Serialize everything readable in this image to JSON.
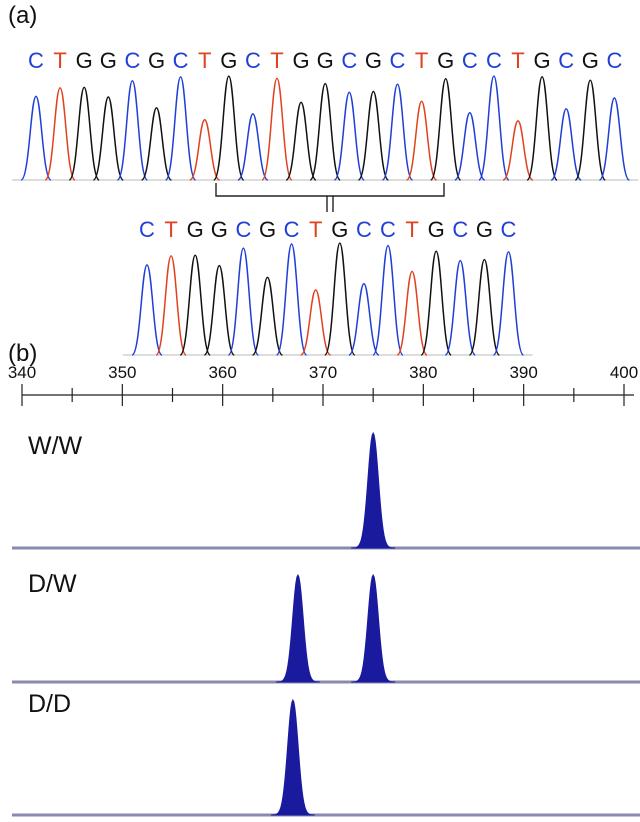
{
  "panel_a": {
    "label": "(a)",
    "top_sequence": "CTGGCGCTGCTGGCGCTGCCTGCGC",
    "bottom_sequence": "CTGGCGCTGCCTGCGC"
  },
  "panel_b": {
    "label": "(b)",
    "axis": {
      "min": 340,
      "max": 400,
      "ticks": [
        340,
        350,
        360,
        370,
        380,
        390,
        400
      ]
    },
    "traces": [
      {
        "name": "W/W",
        "peaks": [
          {
            "size": 375,
            "height": 1.0
          }
        ]
      },
      {
        "name": "D/W",
        "peaks": [
          {
            "size": 367.5,
            "height": 0.93
          },
          {
            "size": 375,
            "height": 0.93
          }
        ]
      },
      {
        "name": "D/D",
        "peaks": [
          {
            "size": 367,
            "height": 1.0
          }
        ]
      }
    ]
  },
  "colors": {
    "A": "#2e7d32",
    "C": "#1f3fd6",
    "G": "#111111",
    "T": "#e0421e",
    "peak_fill": "#1a1a9e",
    "baseline": "#8a8ab0"
  }
}
